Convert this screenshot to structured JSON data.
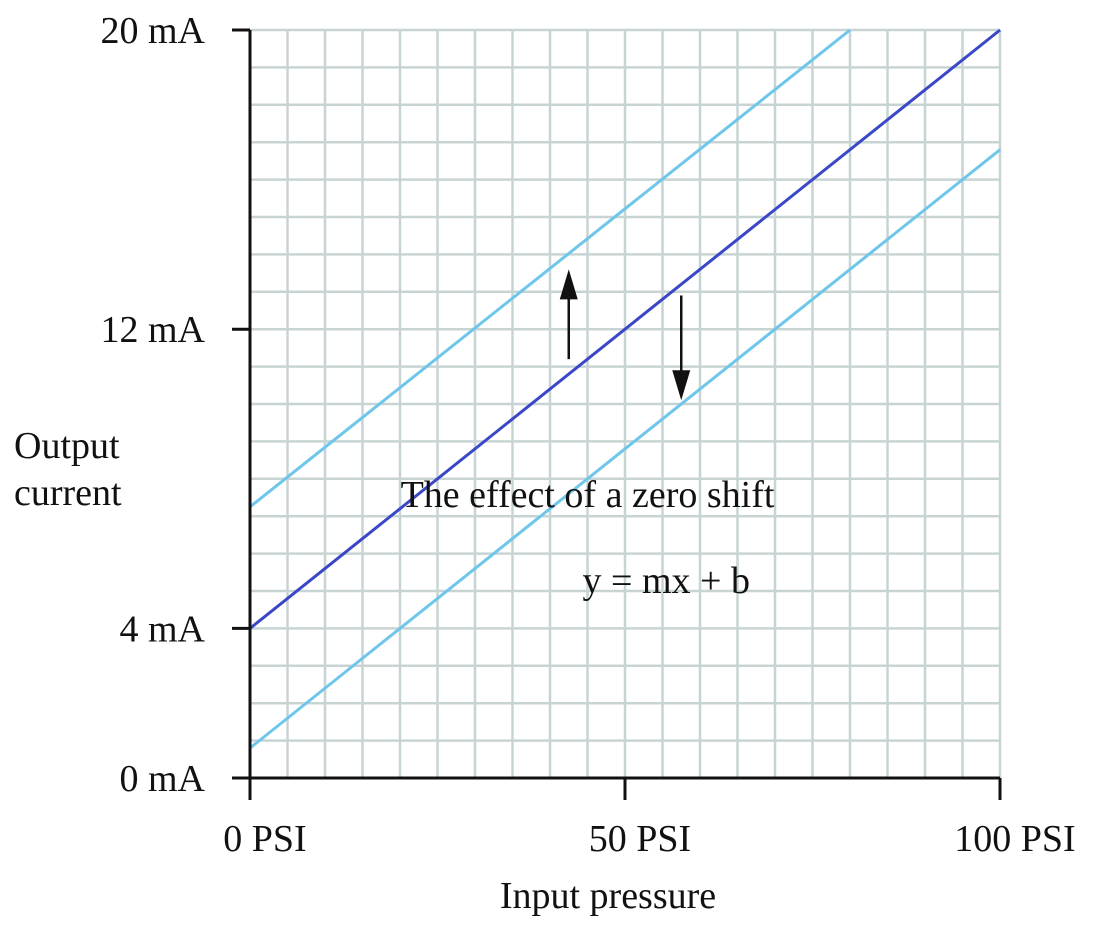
{
  "chart_data": {
    "type": "line",
    "xlabel": "Input pressure",
    "ylabel": [
      "Output",
      "current"
    ],
    "xlim": [
      0,
      100
    ],
    "ylim": [
      0,
      20
    ],
    "x_ticks": [
      {
        "value": 0,
        "label": "0 PSI"
      },
      {
        "value": 50,
        "label": "50 PSI"
      },
      {
        "value": 100,
        "label": "100 PSI"
      }
    ],
    "y_ticks": [
      {
        "value": 0,
        "label": "0 mA"
      },
      {
        "value": 4,
        "label": "4 mA"
      },
      {
        "value": 12,
        "label": "12 mA"
      },
      {
        "value": 20,
        "label": "20 mA"
      }
    ],
    "grid": true,
    "grid_step_x": 5,
    "grid_step_y": 1,
    "series": [
      {
        "role": "shifted-up",
        "color": "#6ec6ea",
        "x": [
          0,
          80
        ],
        "y": [
          7.25,
          20
        ]
      },
      {
        "role": "original",
        "color": "#3a48c8",
        "x": [
          0,
          100
        ],
        "y": [
          4,
          20
        ]
      },
      {
        "role": "shifted-down",
        "color": "#6ec6ea",
        "x": [
          0,
          100
        ],
        "y": [
          0.8,
          16.8
        ]
      }
    ],
    "arrows": [
      {
        "direction": "up",
        "x": 42.5,
        "y_from": 11.2,
        "y_to": 13.6
      },
      {
        "direction": "down",
        "x": 57.5,
        "y_from": 12.9,
        "y_to": 10.1
      }
    ],
    "annotations": [
      {
        "text": "The effect of a zero shift",
        "x": 45,
        "y": 7.6
      },
      {
        "text": "y = mx + b",
        "x": 55.5,
        "y": 5.3
      }
    ],
    "colors": {
      "grid": "#c8d4d4",
      "axis": "#111111",
      "shifted": "#6ec6ea",
      "original": "#3a48c8"
    }
  }
}
